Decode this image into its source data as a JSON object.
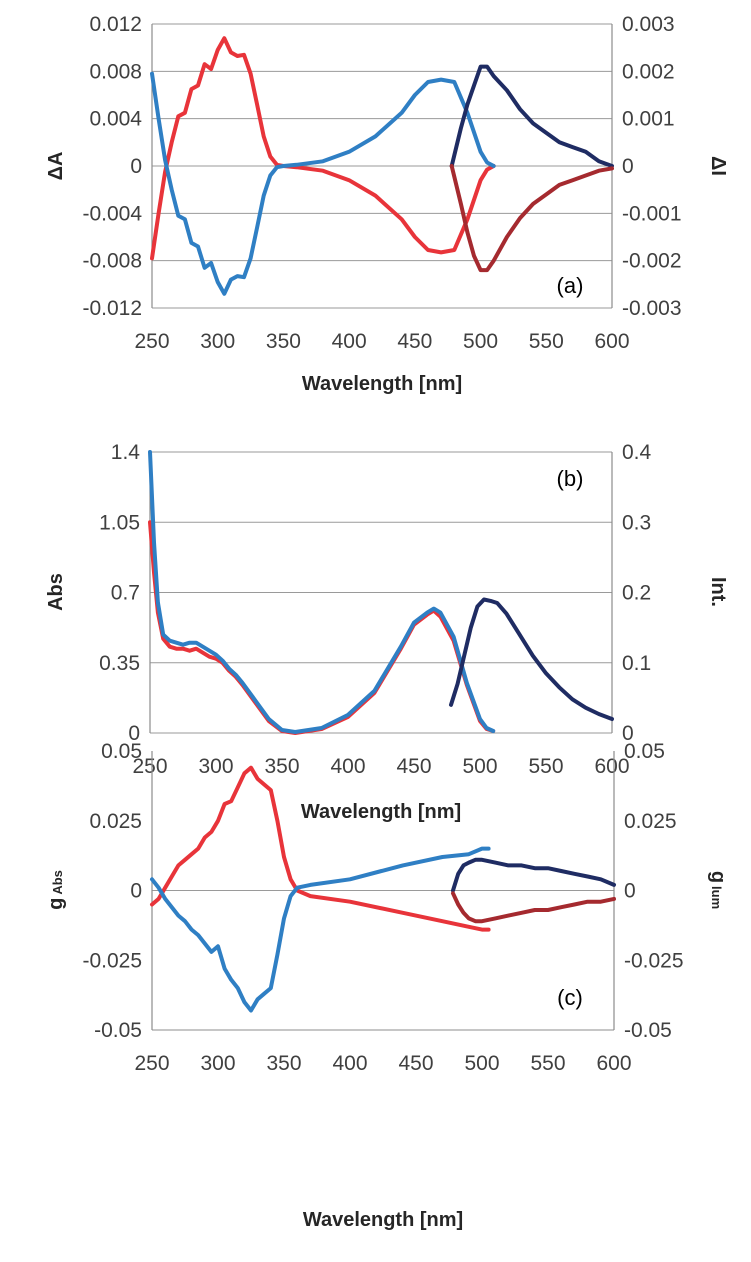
{
  "colors": {
    "red": "#e8343a",
    "blue": "#2f7fc4",
    "dark_navy": "#1f2c63",
    "dark_red": "#a52a2f",
    "grid": "#9a9a9a",
    "axis": "#8c8c8c"
  },
  "chart_data": [
    {
      "type": "line",
      "panel_label": "(a)",
      "xlabel": "Wavelength [nm]",
      "ylabel": "ΔA",
      "y2label": "ΔI",
      "xlim": [
        250,
        600
      ],
      "ylim": [
        -0.012,
        0.012
      ],
      "y2lim": [
        -0.003,
        0.003
      ],
      "x_ticks": [
        "250",
        "300",
        "350",
        "400",
        "450",
        "500",
        "550",
        "600"
      ],
      "y_ticks": [
        "-0.012",
        "-0.008",
        "-0.004",
        "0",
        "0.004",
        "0.008",
        "0.012"
      ],
      "y2_ticks": [
        "-0.003",
        "-0.002",
        "-0.001",
        "0",
        "0.001",
        "0.002",
        "0.003"
      ],
      "grid": true,
      "series": [
        {
          "color": "red",
          "axis": "left",
          "x": [
            250,
            255,
            260,
            265,
            270,
            275,
            280,
            285,
            290,
            295,
            300,
            305,
            310,
            315,
            320,
            325,
            330,
            335,
            340,
            345,
            350,
            360,
            380,
            400,
            420,
            440,
            450,
            460,
            470,
            480,
            490,
            500,
            505,
            510
          ],
          "y": [
            -0.0078,
            -0.004,
            -0.0005,
            0.002,
            0.0042,
            0.0045,
            0.0065,
            0.0068,
            0.0086,
            0.0082,
            0.0098,
            0.0108,
            0.0096,
            0.0093,
            0.0094,
            0.0078,
            0.0052,
            0.0025,
            0.0008,
            0.0001,
            0.0,
            -0.0001,
            -0.0004,
            -0.0012,
            -0.0025,
            -0.0045,
            -0.006,
            -0.0071,
            -0.0073,
            -0.0071,
            -0.0045,
            -0.0012,
            -0.0003,
            0.0
          ]
        },
        {
          "color": "blue",
          "axis": "left",
          "x": [
            250,
            255,
            260,
            265,
            270,
            275,
            280,
            285,
            290,
            295,
            300,
            305,
            310,
            315,
            320,
            325,
            330,
            335,
            340,
            345,
            350,
            360,
            380,
            400,
            420,
            440,
            450,
            460,
            470,
            480,
            490,
            500,
            505,
            510
          ],
          "y": [
            0.0078,
            0.004,
            0.0005,
            -0.002,
            -0.0042,
            -0.0045,
            -0.0065,
            -0.0068,
            -0.0086,
            -0.0082,
            -0.0098,
            -0.0108,
            -0.0096,
            -0.0093,
            -0.0094,
            -0.0078,
            -0.0052,
            -0.0025,
            -0.0008,
            -0.0001,
            0.0,
            0.0001,
            0.0004,
            0.0012,
            0.0025,
            0.0045,
            0.006,
            0.0071,
            0.0073,
            0.0071,
            0.0045,
            0.0012,
            0.0003,
            0.0
          ]
        },
        {
          "color": "dark_navy",
          "axis": "right",
          "x": [
            478,
            485,
            490,
            495,
            500,
            505,
            510,
            520,
            530,
            540,
            550,
            560,
            570,
            580,
            590,
            600
          ],
          "y": [
            0.0,
            0.0008,
            0.0013,
            0.0017,
            0.0021,
            0.0021,
            0.0019,
            0.0016,
            0.0012,
            0.0009,
            0.0007,
            0.0005,
            0.0004,
            0.0003,
            0.0001,
            0.0
          ]
        },
        {
          "color": "dark_red",
          "axis": "right",
          "x": [
            478,
            485,
            490,
            495,
            500,
            505,
            510,
            520,
            530,
            540,
            550,
            560,
            570,
            580,
            590,
            600
          ],
          "y": [
            0.0,
            -0.0008,
            -0.0014,
            -0.0019,
            -0.0022,
            -0.0022,
            -0.002,
            -0.0015,
            -0.0011,
            -0.0008,
            -0.0006,
            -0.0004,
            -0.0003,
            -0.0002,
            -0.0001,
            -5e-05
          ]
        }
      ]
    },
    {
      "type": "line",
      "panel_label": "(b)",
      "xlabel": "Wavelength [nm]",
      "ylabel": "Abs",
      "y2label": "Int.",
      "xlim": [
        250,
        600
      ],
      "ylim": [
        0,
        1.4
      ],
      "y2lim": [
        0,
        0.4
      ],
      "x_ticks": [
        "250",
        "300",
        "350",
        "400",
        "450",
        "500",
        "550",
        "600"
      ],
      "y_ticks": [
        "0",
        "0.35",
        "0.7",
        "1.05",
        "1.4"
      ],
      "y2_ticks": [
        "0",
        "0.1",
        "0.2",
        "0.3",
        "0.4"
      ],
      "grid": true,
      "series": [
        {
          "color": "red",
          "axis": "left",
          "x": [
            250,
            253,
            256,
            260,
            265,
            270,
            275,
            280,
            285,
            290,
            295,
            300,
            305,
            310,
            315,
            320,
            330,
            340,
            350,
            360,
            380,
            400,
            420,
            440,
            450,
            460,
            465,
            470,
            480,
            490,
            500,
            505,
            510
          ],
          "y": [
            1.05,
            0.8,
            0.6,
            0.47,
            0.43,
            0.42,
            0.42,
            0.41,
            0.42,
            0.4,
            0.38,
            0.37,
            0.35,
            0.31,
            0.28,
            0.24,
            0.15,
            0.06,
            0.01,
            0.0,
            0.02,
            0.08,
            0.2,
            0.42,
            0.54,
            0.59,
            0.61,
            0.58,
            0.46,
            0.24,
            0.06,
            0.02,
            0.01
          ]
        },
        {
          "color": "blue",
          "axis": "left",
          "x": [
            250,
            253,
            256,
            260,
            265,
            270,
            275,
            280,
            285,
            290,
            295,
            300,
            305,
            310,
            315,
            320,
            330,
            340,
            350,
            360,
            380,
            400,
            420,
            440,
            450,
            460,
            465,
            470,
            480,
            490,
            500,
            505,
            510
          ],
          "y": [
            1.4,
            0.95,
            0.65,
            0.49,
            0.46,
            0.45,
            0.44,
            0.45,
            0.45,
            0.43,
            0.41,
            0.39,
            0.36,
            0.32,
            0.29,
            0.25,
            0.16,
            0.07,
            0.015,
            0.005,
            0.025,
            0.09,
            0.21,
            0.43,
            0.55,
            0.6,
            0.62,
            0.6,
            0.48,
            0.25,
            0.07,
            0.025,
            0.01
          ]
        },
        {
          "color": "dark_navy",
          "axis": "right",
          "x": [
            478,
            483,
            488,
            493,
            498,
            503,
            508,
            513,
            520,
            530,
            540,
            550,
            560,
            570,
            580,
            590,
            600
          ],
          "y": [
            0.04,
            0.07,
            0.11,
            0.15,
            0.18,
            0.19,
            0.188,
            0.185,
            0.17,
            0.14,
            0.11,
            0.085,
            0.065,
            0.048,
            0.036,
            0.027,
            0.02
          ]
        }
      ]
    },
    {
      "type": "line",
      "panel_label": "(c)",
      "xlabel": "Wavelength [nm]",
      "ylabel": "g",
      "ylabel_sub": "Abs",
      "y2label": "g",
      "y2label_sub": "lum",
      "xlim": [
        250,
        600
      ],
      "ylim": [
        -0.05,
        0.05
      ],
      "y2lim": [
        -0.05,
        0.05
      ],
      "x_ticks": [
        "250",
        "300",
        "350",
        "400",
        "450",
        "500",
        "550",
        "600"
      ],
      "y_ticks": [
        "-0.05",
        "-0.025",
        "0",
        "0.025",
        "0.05"
      ],
      "y2_ticks": [
        "-0.05",
        "-0.025",
        "0",
        "0.025",
        "0.05"
      ],
      "grid": false,
      "series": [
        {
          "color": "red",
          "axis": "left",
          "x": [
            250,
            255,
            260,
            265,
            270,
            275,
            280,
            285,
            290,
            295,
            300,
            305,
            310,
            315,
            320,
            325,
            330,
            335,
            340,
            345,
            350,
            355,
            360,
            370,
            400,
            440,
            470,
            490,
            500,
            505
          ],
          "y": [
            -0.005,
            -0.003,
            0.001,
            0.005,
            0.009,
            0.011,
            0.013,
            0.015,
            0.019,
            0.021,
            0.025,
            0.031,
            0.032,
            0.037,
            0.042,
            0.044,
            0.04,
            0.038,
            0.036,
            0.025,
            0.012,
            0.004,
            0.0,
            -0.002,
            -0.004,
            -0.008,
            -0.011,
            -0.013,
            -0.014,
            -0.014
          ]
        },
        {
          "color": "blue",
          "axis": "left",
          "x": [
            250,
            255,
            260,
            265,
            270,
            275,
            280,
            285,
            290,
            295,
            300,
            305,
            310,
            315,
            320,
            325,
            330,
            335,
            340,
            345,
            350,
            355,
            360,
            370,
            400,
            440,
            470,
            490,
            500,
            505
          ],
          "y": [
            0.004,
            0.001,
            -0.003,
            -0.006,
            -0.009,
            -0.011,
            -0.014,
            -0.016,
            -0.019,
            -0.022,
            -0.02,
            -0.028,
            -0.032,
            -0.035,
            -0.04,
            -0.043,
            -0.039,
            -0.037,
            -0.035,
            -0.023,
            -0.01,
            -0.002,
            0.001,
            0.002,
            0.004,
            0.009,
            0.012,
            0.013,
            0.015,
            0.015
          ]
        },
        {
          "color": "dark_navy",
          "axis": "right",
          "x": [
            478,
            482,
            486,
            490,
            495,
            500,
            510,
            520,
            530,
            540,
            550,
            560,
            570,
            580,
            590,
            600
          ],
          "y": [
            0.0,
            0.006,
            0.009,
            0.01,
            0.011,
            0.011,
            0.01,
            0.009,
            0.009,
            0.008,
            0.008,
            0.007,
            0.006,
            0.005,
            0.004,
            0.002
          ]
        },
        {
          "color": "dark_red",
          "axis": "right",
          "x": [
            478,
            482,
            486,
            490,
            495,
            500,
            510,
            520,
            530,
            540,
            550,
            560,
            570,
            580,
            590,
            600
          ],
          "y": [
            -0.001,
            -0.005,
            -0.008,
            -0.01,
            -0.011,
            -0.011,
            -0.01,
            -0.009,
            -0.008,
            -0.007,
            -0.007,
            -0.006,
            -0.005,
            -0.004,
            -0.004,
            -0.003
          ]
        }
      ]
    }
  ]
}
